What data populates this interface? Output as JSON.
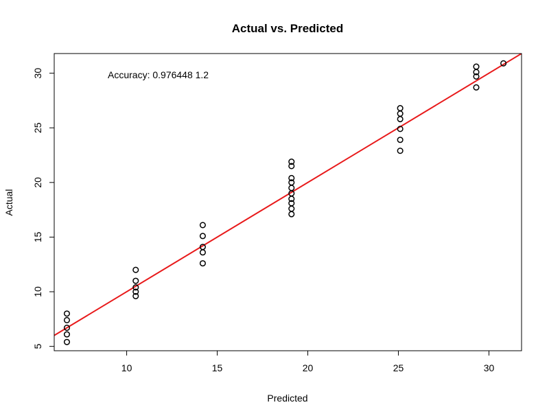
{
  "chart_data": {
    "type": "scatter",
    "title": "Actual vs. Predicted",
    "xlabel": "Predicted",
    "ylabel": "Actual",
    "xlim": [
      6.0,
      31.8
    ],
    "ylim": [
      4.6,
      31.8
    ],
    "x_ticks": [
      10,
      15,
      20,
      25,
      30
    ],
    "y_ticks": [
      5,
      10,
      15,
      20,
      25,
      30
    ],
    "grid": false,
    "annotation": "Accuracy: 0.976448 1.2",
    "series": [
      {
        "points": [
          [
            6.7,
            8.0
          ],
          [
            6.7,
            7.4
          ],
          [
            6.7,
            6.7
          ],
          [
            6.7,
            6.1
          ],
          [
            6.7,
            5.4
          ],
          [
            10.5,
            12.0
          ],
          [
            10.5,
            11.0
          ],
          [
            10.5,
            10.4
          ],
          [
            10.5,
            10.0
          ],
          [
            10.5,
            9.6
          ],
          [
            14.2,
            16.1
          ],
          [
            14.2,
            15.1
          ],
          [
            14.2,
            14.1
          ],
          [
            14.2,
            13.6
          ],
          [
            14.2,
            12.6
          ],
          [
            19.1,
            21.9
          ],
          [
            19.1,
            21.5
          ],
          [
            19.1,
            20.4
          ],
          [
            19.1,
            20.0
          ],
          [
            19.1,
            19.5
          ],
          [
            19.1,
            19.0
          ],
          [
            19.1,
            18.5
          ],
          [
            19.1,
            18.1
          ],
          [
            19.1,
            17.6
          ],
          [
            19.1,
            17.1
          ],
          [
            25.1,
            26.8
          ],
          [
            25.1,
            26.3
          ],
          [
            25.1,
            25.8
          ],
          [
            25.1,
            24.9
          ],
          [
            25.1,
            23.9
          ],
          [
            25.1,
            22.9
          ],
          [
            29.3,
            30.6
          ],
          [
            29.3,
            30.1
          ],
          [
            29.3,
            29.7
          ],
          [
            29.3,
            28.7
          ],
          [
            30.8,
            30.9
          ]
        ],
        "marker": "open-circle",
        "color": "#000000"
      }
    ],
    "fit_line": {
      "slope": 1.0,
      "intercept": 0.0,
      "color": "#e8191a"
    }
  }
}
